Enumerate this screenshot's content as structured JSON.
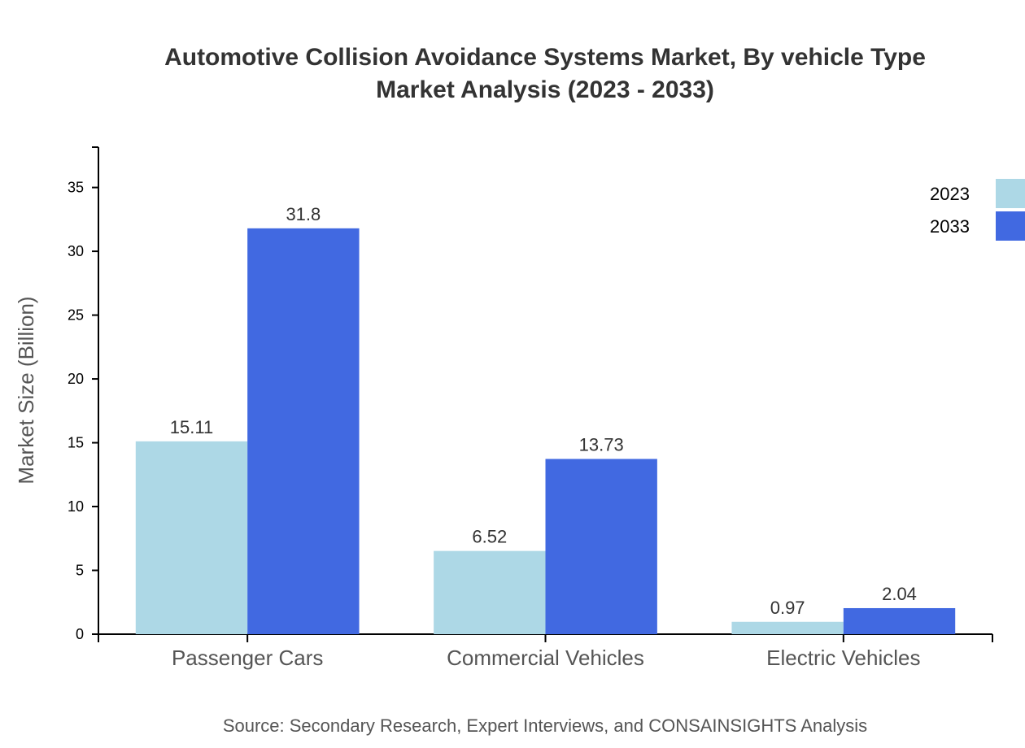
{
  "chart_data": {
    "type": "bar",
    "title_line1": "Automotive Collision Avoidance Systems Market, By vehicle Type",
    "title_line2": "Market Analysis (2023 - 2033)",
    "xlabel": "",
    "ylabel": "Market Size (Billion)",
    "ylim": [
      0,
      38.16
    ],
    "yticks": [
      0,
      5,
      10,
      15,
      20,
      25,
      30,
      35
    ],
    "categories": [
      "Passenger Cars",
      "Commercial Vehicles",
      "Electric Vehicles"
    ],
    "series": [
      {
        "name": "2023",
        "color": "#add8e6",
        "values": [
          15.11,
          6.52,
          0.97
        ]
      },
      {
        "name": "2033",
        "color": "#4169e1",
        "values": [
          31.8,
          13.73,
          2.04
        ]
      }
    ],
    "legend_placement": "top-right",
    "grid": false,
    "source": "Source: Secondary Research, Expert Interviews, and CONSAINSIGHTS Analysis"
  }
}
